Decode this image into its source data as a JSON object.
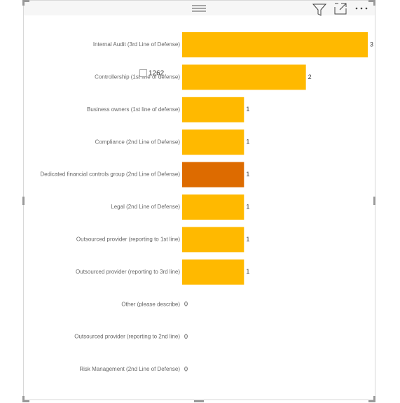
{
  "chart_data": {
    "type": "bar",
    "orientation": "horizontal",
    "categories": [
      "Internal Audit (3rd Line of Defense)",
      "Controllership (1st line of defense)",
      "Business owners (1st line of defense)",
      "Compliance (2nd Line of Defense)",
      "Dedicated financial controls group (2nd Line of Defense)",
      "Legal (2nd Line of Defense)",
      "Outsourced provider (reporting to 1st line)",
      "Outsourced provider (reporting to 3rd line)",
      "Other (please describe)",
      "Outsourced provider (reporting to 2nd line)",
      "Risk Management (2nd Line of Defense)"
    ],
    "values": [
      3,
      2,
      1,
      1,
      1,
      1,
      1,
      1,
      0,
      0,
      0
    ],
    "colors": [
      "#FFB900",
      "#FFB900",
      "#FFB900",
      "#FFB900",
      "#DD6B00",
      "#FFB900",
      "#FFB900",
      "#FFB900",
      "#FFB900",
      "#FFB900",
      "#FFB900"
    ],
    "xlim": [
      0,
      3
    ],
    "grid": false
  },
  "filter_chip": {
    "text": "1262"
  }
}
